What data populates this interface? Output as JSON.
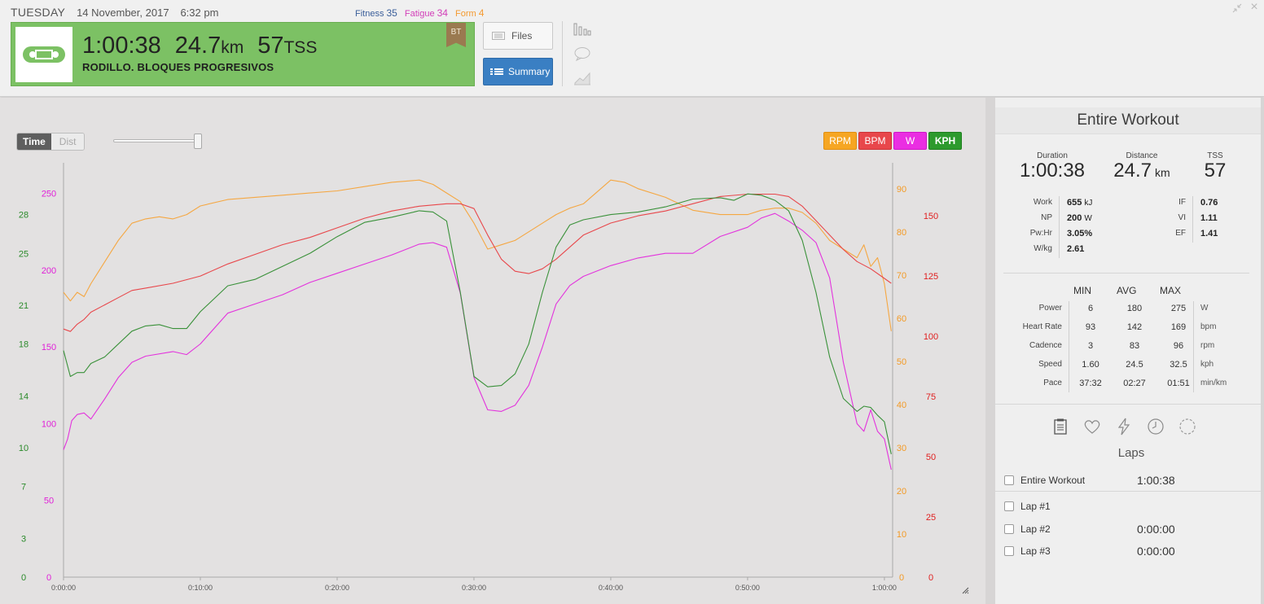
{
  "header": {
    "day": "TUESDAY",
    "date": "14 November, 2017",
    "time": "6:32 pm",
    "fitness_label": "Fitness",
    "fitness_value": "35",
    "fatigue_label": "Fatigue",
    "fatigue_value": "34",
    "form_label": "Form",
    "form_value": "4"
  },
  "workout": {
    "duration": "1:00:38",
    "distance": "24.7",
    "distance_unit": "km",
    "tss": "57",
    "tss_unit": "TSS",
    "title": "RODILLO. BLOQUES PROGRESIVOS",
    "tag": "BT",
    "sport_icon": "bike-chain-icon",
    "card_color": "#7cc164"
  },
  "buttons": {
    "files_label": "Files",
    "summary_label": "Summary"
  },
  "chart_controls": {
    "time_label": "Time",
    "dist_label": "Dist",
    "legend": {
      "rpm": "RPM",
      "bpm": "BPM",
      "w": "W",
      "kph": "KPH"
    }
  },
  "chart_data": {
    "type": "line",
    "title": "",
    "x_ticks": [
      "0:00:00",
      "0:10:00",
      "0:20:00",
      "0:30:00",
      "0:40:00",
      "0:50:00",
      "1:00:00"
    ],
    "x_range_minutes": [
      0,
      60.6
    ],
    "axes": {
      "kph": {
        "ticks": [
          "0",
          "3",
          "7",
          "10",
          "14",
          "18",
          "21",
          "25",
          "28"
        ],
        "range": [
          0,
          32
        ],
        "color": "#2a8a2a"
      },
      "w": {
        "ticks": [
          "0",
          "50",
          "100",
          "150",
          "200",
          "250"
        ],
        "range": [
          0,
          270
        ],
        "color": "#e020d8"
      },
      "rpm": {
        "ticks": [
          "0",
          "10",
          "20",
          "30",
          "40",
          "50",
          "60",
          "70",
          "80",
          "90"
        ],
        "range": [
          0,
          96
        ],
        "color": "#f39a25"
      },
      "bpm": {
        "ticks": [
          "0",
          "25",
          "50",
          "75",
          "100",
          "125",
          "150"
        ],
        "range": [
          0,
          172
        ],
        "color": "#e02020"
      }
    },
    "series": [
      {
        "name": "RPM",
        "axis": "rpm",
        "color": "#f5a742",
        "x": [
          0,
          0.5,
          1,
          1.5,
          2,
          3,
          4,
          5,
          6,
          7,
          8,
          9,
          10,
          12,
          14,
          16,
          18,
          20,
          22,
          24,
          26,
          27,
          28,
          29,
          30,
          31,
          32,
          33,
          34,
          35,
          36,
          37,
          38,
          40,
          41,
          42,
          44,
          46,
          48,
          50,
          51,
          52,
          53,
          54,
          55,
          56,
          57,
          58,
          58.5,
          59,
          59.5,
          60,
          60.5
        ],
        "y": [
          66,
          64,
          66,
          65,
          68,
          73,
          78,
          82,
          83,
          83.5,
          83,
          84,
          86,
          87.5,
          88,
          88.5,
          89,
          89.5,
          90.5,
          91.5,
          92,
          91,
          89,
          87,
          82,
          76,
          77,
          78,
          80,
          82,
          84,
          85.5,
          86.5,
          92,
          91.5,
          90,
          88,
          85,
          84,
          84,
          85,
          85.5,
          85.5,
          84.5,
          82,
          78,
          76,
          74,
          77,
          72,
          74,
          68,
          57
        ]
      },
      {
        "name": "BPM",
        "axis": "bpm",
        "color": "#e8474b",
        "x": [
          0,
          0.5,
          1,
          1.5,
          2,
          3,
          4,
          5,
          6,
          8,
          10,
          12,
          14,
          16,
          18,
          20,
          22,
          24,
          26,
          28,
          29,
          30,
          31,
          32,
          33,
          34,
          35,
          36,
          37,
          38,
          40,
          42,
          44,
          46,
          48,
          50,
          52,
          53,
          54,
          55,
          56,
          57,
          58,
          59,
          60,
          60.5
        ],
        "y": [
          103,
          102,
          105,
          107,
          110,
          113,
          116,
          119,
          120,
          122,
          125,
          130,
          134,
          138,
          141,
          145,
          149,
          152,
          154,
          155,
          155,
          153,
          142,
          132,
          127,
          126,
          128,
          132,
          137,
          142,
          147,
          150,
          152,
          155,
          158,
          159,
          159,
          158,
          154,
          148,
          142,
          136,
          131,
          128,
          124,
          122
        ]
      },
      {
        "name": "W",
        "axis": "w",
        "color": "#e333dd",
        "x": [
          0,
          0.3,
          0.6,
          1,
          1.5,
          2,
          3,
          4,
          5,
          6,
          8,
          9,
          10,
          12,
          14,
          16,
          18,
          20,
          22,
          24,
          26,
          27,
          28,
          29,
          30,
          31,
          32,
          33,
          34,
          35,
          36,
          37,
          38,
          40,
          42,
          44,
          46,
          48,
          50,
          51,
          52,
          53,
          54,
          55,
          56,
          57,
          58,
          58.5,
          59,
          59.5,
          60,
          60.5
        ],
        "y": [
          83,
          90,
          102,
          106,
          107,
          103,
          116,
          130,
          140,
          144,
          147,
          145,
          152,
          172,
          178,
          184,
          192,
          198,
          204,
          210,
          217,
          218,
          215,
          185,
          130,
          109,
          108,
          112,
          125,
          150,
          178,
          190,
          196,
          203,
          208,
          211,
          211,
          222,
          228,
          234,
          237,
          232,
          226,
          218,
          195,
          140,
          100,
          95,
          109,
          95,
          90,
          70
        ]
      },
      {
        "name": "KPH",
        "axis": "kph",
        "color": "#3a913a",
        "x": [
          0,
          0.5,
          1,
          1.5,
          2,
          3,
          4,
          5,
          6,
          7,
          8,
          9,
          10,
          12,
          14,
          16,
          18,
          20,
          22,
          24,
          26,
          27,
          28,
          29,
          30,
          31,
          32,
          33,
          34,
          35,
          36,
          37,
          38,
          40,
          42,
          44,
          46,
          48,
          49,
          50,
          51,
          52,
          53,
          54,
          55,
          56,
          57,
          58,
          58.5,
          59,
          59.5,
          60,
          60.5
        ],
        "y": [
          17.5,
          15.5,
          15.8,
          15.8,
          16.5,
          17.0,
          18.0,
          19.0,
          19.4,
          19.5,
          19.2,
          19.2,
          20.5,
          22.5,
          23.0,
          24.0,
          25.0,
          26.3,
          27.4,
          27.8,
          28.3,
          28.2,
          27.5,
          22.0,
          15.5,
          14.7,
          14.8,
          15.7,
          18.0,
          22.0,
          25.5,
          27.2,
          27.6,
          28.0,
          28.2,
          28.6,
          29.2,
          29.3,
          29.1,
          29.6,
          29.5,
          29.1,
          28.3,
          26.0,
          22.0,
          17.0,
          13.8,
          12.8,
          13.2,
          13.1,
          12.5,
          12.0,
          9.5
        ]
      }
    ]
  },
  "panel": {
    "title": "Entire Workout",
    "duration_label": "Duration",
    "duration_value": "1:00:38",
    "distance_label": "Distance",
    "distance_value": "24.7",
    "distance_unit": "km",
    "tss_label": "TSS",
    "tss_value": "57",
    "metrics_left": [
      {
        "label": "Work",
        "value": "655",
        "unit": "kJ"
      },
      {
        "label": "NP",
        "value": "200",
        "unit": "W"
      },
      {
        "label": "Pw:Hr",
        "value": "3.05%",
        "unit": ""
      },
      {
        "label": "W/kg",
        "value": "2.61",
        "unit": ""
      }
    ],
    "metrics_right": [
      {
        "label": "IF",
        "value": "0.76"
      },
      {
        "label": "VI",
        "value": "1.11"
      },
      {
        "label": "EF",
        "value": "1.41"
      }
    ],
    "table_headers": {
      "min": "MIN",
      "avg": "AVG",
      "max": "MAX"
    },
    "table_rows": [
      {
        "label": "Power",
        "min": "6",
        "avg": "180",
        "max": "275",
        "unit": "W"
      },
      {
        "label": "Heart Rate",
        "min": "93",
        "avg": "142",
        "max": "169",
        "unit": "bpm"
      },
      {
        "label": "Cadence",
        "min": "3",
        "avg": "83",
        "max": "96",
        "unit": "rpm"
      },
      {
        "label": "Speed",
        "min": "1.60",
        "avg": "24.5",
        "max": "32.5",
        "unit": "kph"
      },
      {
        "label": "Pace",
        "min": "37:32",
        "avg": "02:27",
        "max": "01:51",
        "unit": "min/km"
      }
    ],
    "laps_title": "Laps",
    "laps": [
      {
        "name": "Entire Workout",
        "time": "1:00:38"
      },
      {
        "name": "Lap #1",
        "time": ""
      },
      {
        "name": "Lap #2",
        "time": "0:00:00"
      },
      {
        "name": "Lap #3",
        "time": "0:00:00"
      }
    ]
  }
}
